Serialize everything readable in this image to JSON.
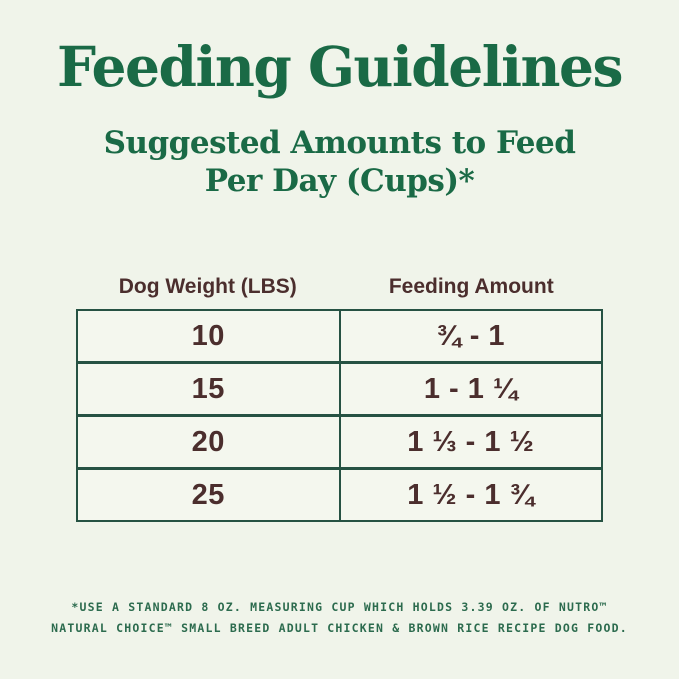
{
  "header": {
    "title": "Feeding Guidelines",
    "subtitle_line1": "Suggested Amounts to Feed",
    "subtitle_line2": "Per Day (Cups)*"
  },
  "table": {
    "columns": {
      "weight": "Dog Weight (LBS)",
      "amount": "Feeding Amount"
    },
    "rows": [
      {
        "weight": "10",
        "amount": "¾ - 1"
      },
      {
        "weight": "15",
        "amount": "1 - 1 ¼"
      },
      {
        "weight": "20",
        "amount": "1 ⅓ - 1 ½"
      },
      {
        "weight": "25",
        "amount": "1 ½ - 1 ¾"
      }
    ]
  },
  "footnote": {
    "line1": "*USE A STANDARD 8 OZ. MEASURING CUP WHICH HOLDS 3.39 OZ. OF NUTRO™",
    "line2": "NATURAL CHOICE™ SMALL BREED ADULT CHICKEN & BROWN RICE RECIPE DOG FOOD."
  },
  "colors": {
    "background": "#f0f4ea",
    "title_green": "#1a6a46",
    "border_green": "#265243",
    "text_maroon": "#4b2e2d",
    "footnote_green": "#2c6b4e"
  },
  "chart_data": {
    "type": "table",
    "title": "Feeding Guidelines",
    "subtitle": "Suggested Amounts to Feed Per Day (Cups)*",
    "columns": [
      "Dog Weight (LBS)",
      "Feeding Amount"
    ],
    "rows": [
      [
        "10",
        "¾ - 1"
      ],
      [
        "15",
        "1 - 1 ¼"
      ],
      [
        "20",
        "1 ⅓ - 1 ½"
      ],
      [
        "25",
        "1 ½ - 1 ¾"
      ]
    ],
    "numeric": [
      {
        "weight_lbs": 10,
        "cups_min": 0.75,
        "cups_max": 1.0
      },
      {
        "weight_lbs": 15,
        "cups_min": 1.0,
        "cups_max": 1.25
      },
      {
        "weight_lbs": 20,
        "cups_min": 1.33,
        "cups_max": 1.5
      },
      {
        "weight_lbs": 25,
        "cups_min": 1.5,
        "cups_max": 1.75
      }
    ],
    "footnote": "*USE A STANDARD 8 OZ. MEASURING CUP WHICH HOLDS 3.39 OZ. OF NUTRO™ NATURAL CHOICE™ SMALL BREED ADULT CHICKEN & BROWN RICE RECIPE DOG FOOD."
  }
}
